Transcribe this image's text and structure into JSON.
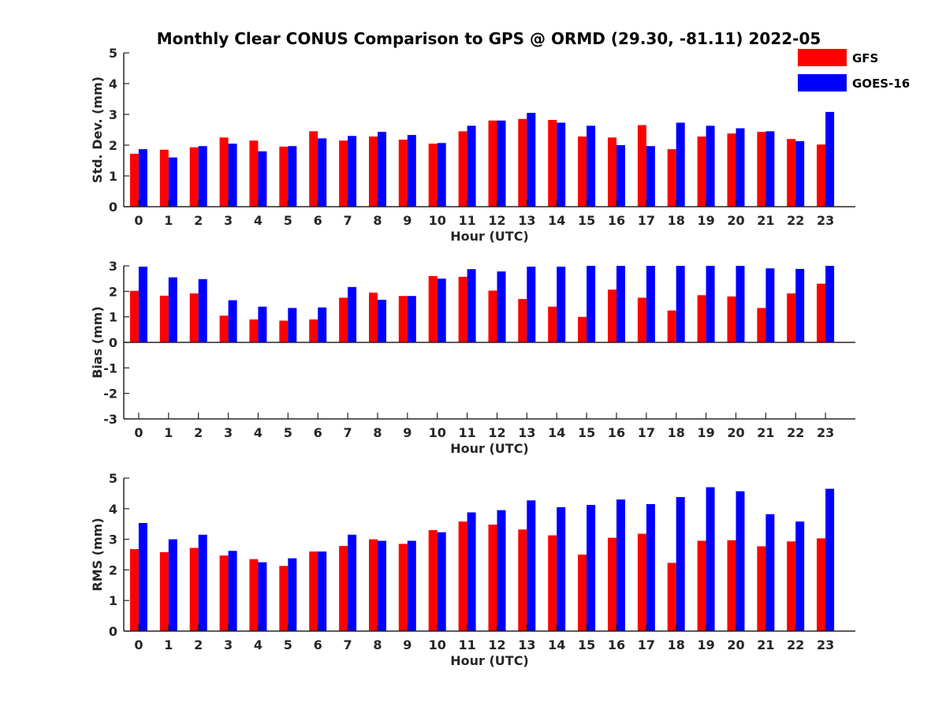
{
  "chart_data": {
    "type": "bar",
    "title": "Monthly Clear CONUS Comparison to GPS @ ORMD (29.30, -81.11) 2022-05",
    "categories": [
      "0",
      "1",
      "2",
      "3",
      "4",
      "5",
      "6",
      "7",
      "8",
      "9",
      "10",
      "11",
      "12",
      "13",
      "14",
      "15",
      "16",
      "17",
      "18",
      "19",
      "20",
      "21",
      "22",
      "23"
    ],
    "legend": {
      "placement": "top-right",
      "entries": [
        {
          "name": "GFS",
          "color": "#ff0000"
        },
        {
          "name": "GOES-16",
          "color": "#0000ff"
        }
      ]
    },
    "panels": [
      {
        "ylabel": "Std. Dev. (mm)",
        "xlabel": "Hour (UTC)",
        "ylim": [
          0,
          5
        ],
        "yticks": [
          "0",
          "1",
          "2",
          "3",
          "4",
          "5"
        ],
        "series": [
          {
            "name": "GFS",
            "color": "#ff0000",
            "values": [
              1.72,
              1.85,
              1.93,
              2.25,
              2.15,
              1.95,
              2.45,
              2.15,
              2.28,
              2.18,
              2.05,
              2.45,
              2.8,
              2.85,
              2.82,
              2.28,
              2.25,
              2.65,
              1.87,
              2.28,
              2.38,
              2.43,
              2.2,
              2.02
            ]
          },
          {
            "name": "GOES-16",
            "color": "#0000ff",
            "values": [
              1.87,
              1.6,
              1.97,
              2.05,
              1.8,
              1.97,
              2.22,
              2.3,
              2.43,
              2.33,
              2.07,
              2.63,
              2.8,
              3.05,
              2.73,
              2.63,
              2.0,
              1.97,
              2.73,
              2.63,
              2.55,
              2.45,
              2.13,
              3.08
            ]
          }
        ]
      },
      {
        "ylabel": "Bias (mm)",
        "xlabel": "Hour (UTC)",
        "ylim": [
          -3,
          3
        ],
        "yticks": [
          "-3",
          "-2",
          "-1",
          "0",
          "1",
          "2",
          "3"
        ],
        "series": [
          {
            "name": "GFS",
            "color": "#ff0000",
            "values": [
              2.02,
              1.83,
              1.92,
              1.05,
              0.9,
              0.85,
              0.9,
              1.75,
              1.95,
              1.82,
              2.6,
              2.57,
              2.03,
              1.7,
              1.4,
              1.0,
              2.07,
              1.75,
              1.25,
              1.85,
              1.8,
              1.35,
              1.92,
              2.3
            ]
          },
          {
            "name": "GOES-16",
            "color": "#0000ff",
            "values": [
              2.97,
              2.55,
              2.48,
              1.65,
              1.4,
              1.35,
              1.37,
              2.17,
              1.67,
              1.82,
              2.5,
              2.87,
              2.78,
              2.97,
              2.97,
              3.0,
              3.0,
              3.0,
              3.0,
              3.0,
              3.0,
              2.9,
              2.88,
              3.0
            ]
          }
        ]
      },
      {
        "ylabel": "RMS (mm)",
        "xlabel": "Hour (UTC)",
        "ylim": [
          0,
          5
        ],
        "yticks": [
          "0",
          "1",
          "2",
          "3",
          "4",
          "5"
        ],
        "series": [
          {
            "name": "GFS",
            "color": "#ff0000",
            "values": [
              2.68,
              2.58,
              2.72,
              2.47,
              2.35,
              2.13,
              2.6,
              2.78,
              3.0,
              2.85,
              3.3,
              3.58,
              3.48,
              3.32,
              3.13,
              2.5,
              3.05,
              3.18,
              2.23,
              2.95,
              2.97,
              2.77,
              2.93,
              3.03
            ]
          },
          {
            "name": "GOES-16",
            "color": "#0000ff",
            "values": [
              3.53,
              3.0,
              3.15,
              2.62,
              2.25,
              2.38,
              2.6,
              3.15,
              2.95,
              2.95,
              3.23,
              3.88,
              3.95,
              4.27,
              4.05,
              4.12,
              4.3,
              4.15,
              4.38,
              4.7,
              4.57,
              3.82,
              3.58,
              4.65
            ]
          }
        ]
      }
    ]
  }
}
